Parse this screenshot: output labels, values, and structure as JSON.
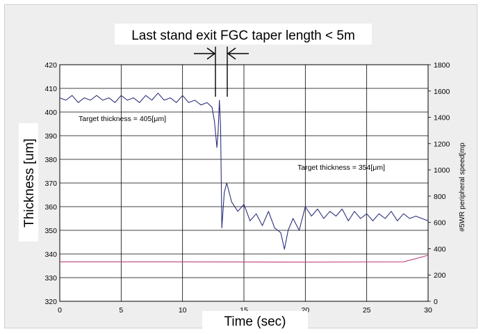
{
  "chart_data": {
    "type": "line",
    "title": "Last stand exit FGC taper length < 5m",
    "xlabel": "Time (sec)",
    "ylabel": "Thickness [um]",
    "ylabel_right": "#5WR peripheral speed[mp",
    "xlim": [
      0,
      30
    ],
    "ylim": [
      320,
      420
    ],
    "ylim_right": [
      0,
      1800
    ],
    "x_ticks": [
      "0",
      "5",
      "10",
      "15",
      "20",
      "25",
      "30"
    ],
    "y_ticks": [
      "320",
      "330",
      "340",
      "350",
      "360",
      "370",
      "380",
      "390",
      "400",
      "410",
      "420"
    ],
    "y_ticks_right": [
      "0",
      "200",
      "400",
      "600",
      "800",
      "1000",
      "1200",
      "1400",
      "1600",
      "1800"
    ],
    "grid": true,
    "annotations": {
      "target_before": "Target thickness = 405[μm]",
      "target_after": "Target thickness = 354[μm]"
    },
    "series": [
      {
        "axis": "left",
        "color": "#2b2f7a",
        "x": [
          0,
          0.5,
          1,
          1.5,
          2,
          2.5,
          3,
          3.5,
          4,
          4.5,
          5,
          5.5,
          6,
          6.5,
          7,
          7.5,
          8,
          8.5,
          9,
          9.5,
          10,
          10.5,
          11,
          11.5,
          12,
          12.4,
          12.6,
          12.8,
          12.9,
          13.0,
          13.1,
          13.2,
          13.4,
          13.6,
          14,
          14.5,
          15,
          15.5,
          16,
          16.5,
          17,
          17.5,
          18,
          18.3,
          18.6,
          19,
          19.5,
          20,
          20.5,
          21,
          21.5,
          22,
          22.5,
          23,
          23.5,
          24,
          24.5,
          25,
          25.5,
          26,
          26.5,
          27,
          27.5,
          28,
          28.5,
          29,
          29.5,
          30
        ],
        "y": [
          406,
          405,
          407,
          404,
          406,
          405,
          407,
          405,
          406,
          404,
          407,
          405,
          406,
          404,
          407,
          405,
          408,
          405,
          406,
          404,
          407,
          404,
          405,
          403,
          404,
          402,
          396,
          385,
          392,
          405,
          394,
          351,
          366,
          370,
          362,
          358,
          361,
          354,
          357,
          352,
          358,
          351,
          349,
          342,
          350,
          355,
          350,
          360,
          356,
          359,
          355,
          358,
          356,
          359,
          354,
          358,
          355,
          357,
          354,
          357,
          355,
          358,
          354,
          357,
          355,
          356,
          355,
          354
        ]
      },
      {
        "axis": "right",
        "color": "#c0407e",
        "x": [
          0,
          10,
          20,
          28,
          30
        ],
        "y": [
          300,
          300,
          298,
          300,
          350
        ]
      }
    ]
  }
}
